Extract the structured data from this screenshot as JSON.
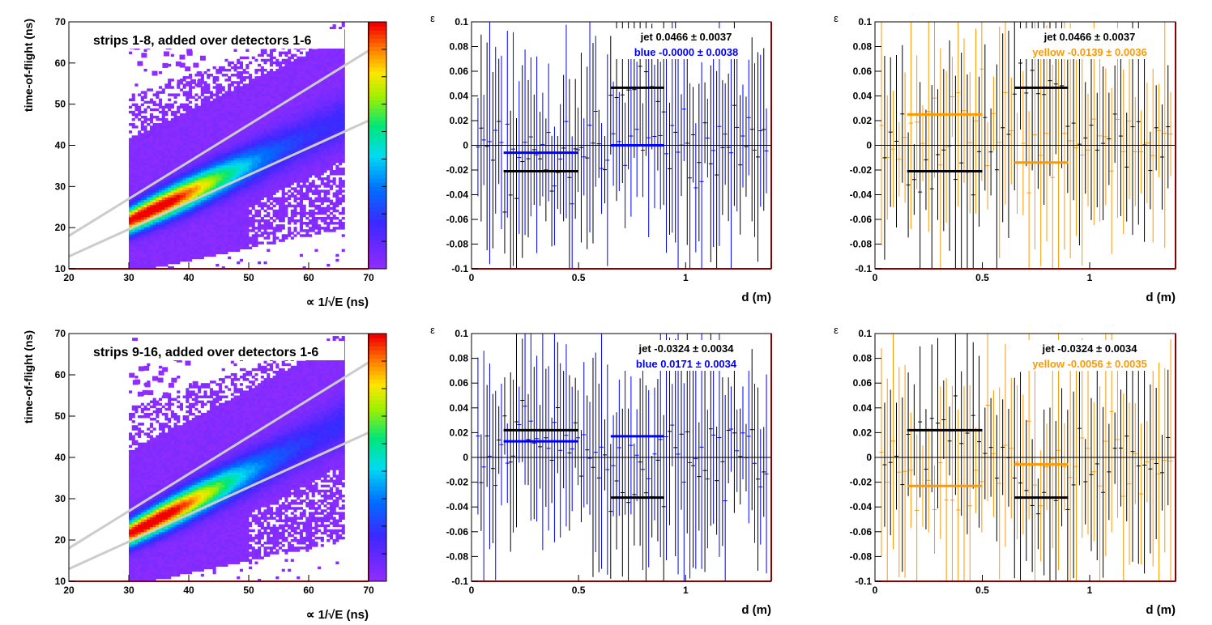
{
  "colors": {
    "axis": "#000000",
    "frame_accent": "#8b0000",
    "blue": "#0000ff",
    "yellow": "#ff9900",
    "black": "#000000",
    "band": "#cccccc",
    "heat_base": "#8f2cff"
  },
  "chart_data": [
    {
      "id": "heat-top",
      "type": "heatmap",
      "title": "strips 1-8, added over detectors 1-6",
      "xlabel": "∝ 1/√E (ns)",
      "ylabel": "time-of-flight (ns)",
      "xlim": [
        20,
        70
      ],
      "ylim": [
        10,
        70
      ],
      "xticks": [
        "20",
        "30",
        "40",
        "50",
        "60",
        "70"
      ],
      "yticks": [
        "10",
        "20",
        "30",
        "40",
        "50",
        "60",
        "70"
      ],
      "ridge": {
        "x1": 32,
        "y1": 23,
        "x2": 64,
        "y2": 45
      },
      "band_lines": [
        {
          "x1": 20,
          "y1": 18,
          "x2": 70,
          "y2": 63
        },
        {
          "x1": 20,
          "y1": 13,
          "x2": 70,
          "y2": 46
        }
      ],
      "colorbar": {
        "min": 0,
        "max": 9
      }
    },
    {
      "id": "eps-top-blue",
      "type": "scatter",
      "ylabel": "ε",
      "xlabel": "d (m)",
      "xlim": [
        0,
        1.4
      ],
      "ylim": [
        -0.1,
        0.1
      ],
      "xticks": [
        "0",
        "0.5",
        "1"
      ],
      "yticks": [
        "-0.1",
        "-0.08",
        "-0.06",
        "-0.04",
        "-0.02",
        "0",
        "0.02",
        "0.04",
        "0.06",
        "0.08",
        "0.1"
      ],
      "legend_lines": [
        "jet  0.0466 ± 0.0037",
        "blue -0.0000 ± 0.0038"
      ],
      "series": [
        {
          "color": "black",
          "segments": [
            {
              "x1": 0.15,
              "x2": 0.5,
              "y": -0.021
            },
            {
              "x1": 0.65,
              "x2": 0.9,
              "y": 0.0466
            }
          ]
        },
        {
          "color": "blue",
          "segments": [
            {
              "x1": 0.15,
              "x2": 0.5,
              "y": -0.006
            },
            {
              "x1": 0.65,
              "x2": 0.9,
              "y": 0.0
            }
          ]
        }
      ]
    },
    {
      "id": "eps-top-yellow",
      "type": "scatter",
      "ylabel": "ε",
      "xlabel": "d (m)",
      "xlim": [
        0,
        1.4
      ],
      "ylim": [
        -0.1,
        0.1
      ],
      "xticks": [
        "0",
        "0.5",
        "1"
      ],
      "yticks": [
        "-0.1",
        "-0.08",
        "-0.06",
        "-0.04",
        "-0.02",
        "0",
        "0.02",
        "0.04",
        "0.06",
        "0.08",
        "0.1"
      ],
      "legend_lines": [
        "jet  0.0466 ± 0.0037",
        "yellow -0.0139 ± 0.0036"
      ],
      "series": [
        {
          "color": "black",
          "segments": [
            {
              "x1": 0.15,
              "x2": 0.5,
              "y": -0.021
            },
            {
              "x1": 0.65,
              "x2": 0.9,
              "y": 0.0466
            }
          ]
        },
        {
          "color": "yellow",
          "segments": [
            {
              "x1": 0.15,
              "x2": 0.5,
              "y": 0.025
            },
            {
              "x1": 0.65,
              "x2": 0.9,
              "y": -0.0139
            }
          ]
        }
      ]
    },
    {
      "id": "heat-bottom",
      "type": "heatmap",
      "title": "strips 9-16, added over detectors 1-6",
      "xlabel": "∝ 1/√E (ns)",
      "ylabel": "time-of-flight (ns)",
      "xlim": [
        20,
        70
      ],
      "ylim": [
        10,
        70
      ],
      "xticks": [
        "20",
        "30",
        "40",
        "50",
        "60",
        "70"
      ],
      "yticks": [
        "10",
        "20",
        "30",
        "40",
        "50",
        "60",
        "70"
      ],
      "ridge": {
        "x1": 32,
        "y1": 23,
        "x2": 64,
        "y2": 47
      },
      "band_lines": [
        {
          "x1": 20,
          "y1": 18,
          "x2": 70,
          "y2": 63
        },
        {
          "x1": 20,
          "y1": 13,
          "x2": 70,
          "y2": 46
        }
      ],
      "colorbar": {
        "min": 0,
        "max": 9
      }
    },
    {
      "id": "eps-bottom-blue",
      "type": "scatter",
      "ylabel": "ε",
      "xlabel": "d (m)",
      "xlim": [
        0,
        1.4
      ],
      "ylim": [
        -0.1,
        0.1
      ],
      "xticks": [
        "0",
        "0.5",
        "1"
      ],
      "yticks": [
        "-0.1",
        "-0.08",
        "-0.06",
        "-0.04",
        "-0.02",
        "0",
        "0.02",
        "0.04",
        "0.06",
        "0.08",
        "0.1"
      ],
      "legend_lines": [
        "jet -0.0324 ± 0.0034",
        "blue  0.0171 ± 0.0034"
      ],
      "series": [
        {
          "color": "black",
          "segments": [
            {
              "x1": 0.15,
              "x2": 0.5,
              "y": 0.022
            },
            {
              "x1": 0.65,
              "x2": 0.9,
              "y": -0.0324
            }
          ]
        },
        {
          "color": "blue",
          "segments": [
            {
              "x1": 0.15,
              "x2": 0.5,
              "y": 0.013
            },
            {
              "x1": 0.65,
              "x2": 0.9,
              "y": 0.0171
            }
          ]
        }
      ]
    },
    {
      "id": "eps-bottom-yellow",
      "type": "scatter",
      "ylabel": "ε",
      "xlabel": "d (m)",
      "xlim": [
        0,
        1.4
      ],
      "ylim": [
        -0.1,
        0.1
      ],
      "xticks": [
        "0",
        "0.5",
        "1"
      ],
      "yticks": [
        "-0.1",
        "-0.08",
        "-0.06",
        "-0.04",
        "-0.02",
        "0",
        "0.02",
        "0.04",
        "0.06",
        "0.08",
        "0.1"
      ],
      "legend_lines": [
        "jet -0.0324 ± 0.0034",
        "yellow -0.0056 ± 0.0035"
      ],
      "series": [
        {
          "color": "black",
          "segments": [
            {
              "x1": 0.15,
              "x2": 0.5,
              "y": 0.022
            },
            {
              "x1": 0.65,
              "x2": 0.9,
              "y": -0.0324
            }
          ]
        },
        {
          "color": "yellow",
          "segments": [
            {
              "x1": 0.15,
              "x2": 0.5,
              "y": -0.023
            },
            {
              "x1": 0.65,
              "x2": 0.9,
              "y": -0.0056
            }
          ]
        }
      ]
    }
  ]
}
